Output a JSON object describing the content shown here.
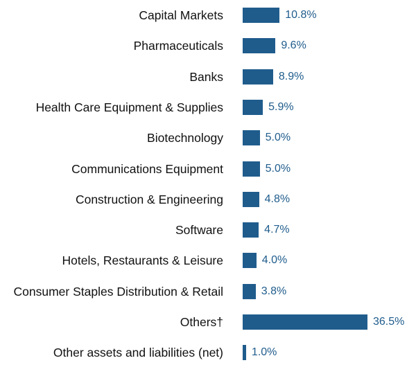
{
  "chart_data": {
    "type": "bar",
    "orientation": "horizontal",
    "categories": [
      "Capital Markets",
      "Pharmaceuticals",
      "Banks",
      "Health Care Equipment & Supplies",
      "Biotechnology",
      "Communications Equipment",
      "Construction & Engineering",
      "Software",
      "Hotels, Restaurants & Leisure",
      "Consumer Staples Distribution & Retail",
      "Others†",
      "Other assets and liabilities (net)"
    ],
    "values": [
      10.8,
      9.6,
      8.9,
      5.9,
      5.0,
      5.0,
      4.8,
      4.7,
      4.0,
      3.8,
      36.5,
      1.0
    ],
    "value_labels": [
      "10.8%",
      "9.6%",
      "8.9%",
      "5.9%",
      "5.0%",
      "5.0%",
      "4.8%",
      "4.7%",
      "4.0%",
      "3.8%",
      "36.5%",
      "1.0%"
    ],
    "color": "#1f5c8c"
  }
}
